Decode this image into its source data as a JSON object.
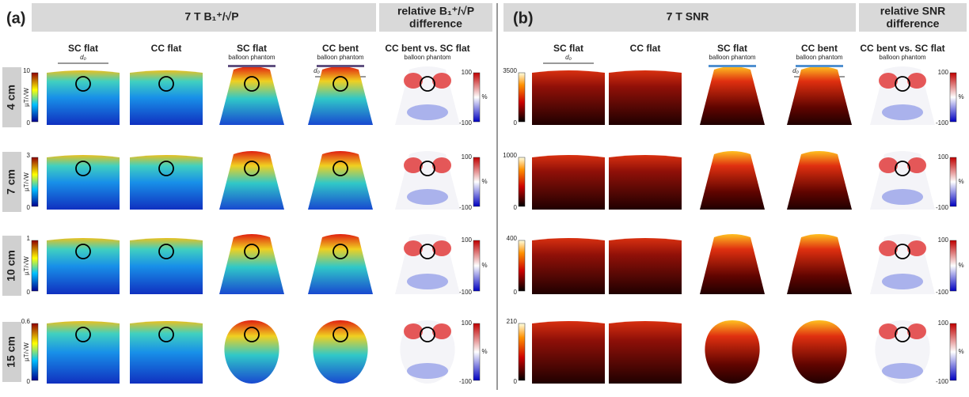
{
  "row_labels": [
    "4 cm",
    "7 cm",
    "10 cm",
    "15 cm"
  ],
  "panel_a": {
    "label": "(a)",
    "title": "7 T B₁⁺/√P",
    "diff_title": [
      "relative B₁⁺/√P",
      "difference"
    ],
    "columns": [
      {
        "title": "SC flat",
        "d_label": "d₀"
      },
      {
        "title": "CC flat"
      },
      {
        "title": "SC flat",
        "subtitle": "balloon phantom"
      },
      {
        "title": "CC bent",
        "subtitle": "balloon phantom",
        "d_label": "d₀"
      },
      {
        "title": "CC bent vs. SC flat",
        "subtitle": "balloon phantom"
      }
    ],
    "unit": "µT/√W",
    "scale_max": [
      10,
      3,
      1,
      0.6
    ],
    "scale_min": 0,
    "diff_unit": "%",
    "diff_max": 100,
    "diff_min": -100
  },
  "panel_b": {
    "label": "(b)",
    "title": "7 T SNR",
    "diff_title": [
      "relative SNR",
      "difference"
    ],
    "columns": [
      {
        "title": "SC flat",
        "d_label": "d₀"
      },
      {
        "title": "CC flat"
      },
      {
        "title": "SC flat",
        "subtitle": "balloon phantom"
      },
      {
        "title": "CC bent",
        "subtitle": "balloon phantom",
        "d_label": "d₀"
      },
      {
        "title": "CC bent vs. SC flat",
        "subtitle": "balloon phantom"
      }
    ],
    "scale_max": [
      3500,
      1000,
      400,
      210
    ],
    "scale_min": 0,
    "diff_unit": "%",
    "diff_max": 100,
    "diff_min": -100
  }
}
